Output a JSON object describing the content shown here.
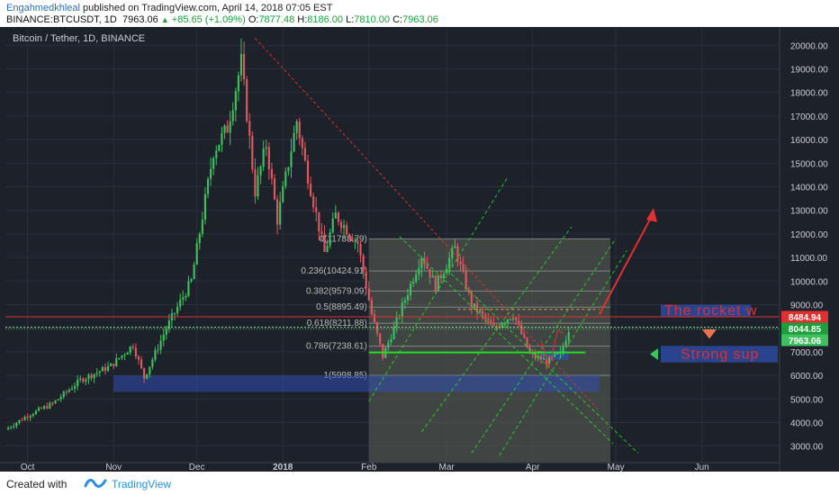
{
  "header": {
    "author": "Engahmedkhleal",
    "published_text": " published on TradingView.com, April 14, 2018 07:05 EST",
    "symbol": "BINANCE:BTCUSDT, 1D",
    "last": "7963.06",
    "change": "+85.65 (+1.09%)",
    "o_label": "O:",
    "o_value": "7877.48",
    "h_label": "H:",
    "h_value": "8186.00",
    "l_label": "L:",
    "l_value": "7810.00",
    "c_label": "C:",
    "c_value": "7963.06"
  },
  "footer": {
    "created_with": "Created with",
    "brand": "TradingView"
  },
  "colors": {
    "background": "#1d212a",
    "up": "#3fbf5e",
    "down": "#e0585f",
    "grid": "#2a2f3a",
    "red_line": "#e03030",
    "green_line": "#22dd22",
    "fib_box": "#5c6559",
    "blue_box": "#2d4fb0"
  },
  "chart_data": {
    "type": "candlestick",
    "title": "Bitcoin / Tether, 1D, BINANCE",
    "x_tick_labels": [
      "Oct",
      "Nov",
      "Dec",
      "2018",
      "Feb",
      "Mar",
      "Apr",
      "May",
      "Jun"
    ],
    "x_tick_dates": [
      "2017-10-01",
      "2017-11-01",
      "2017-12-01",
      "2018-01-01",
      "2018-02-01",
      "2018-03-01",
      "2018-04-01",
      "2018-05-01",
      "2018-06-01"
    ],
    "y_tick_labels": [
      "20000.00",
      "19000.00",
      "18000.00",
      "17000.00",
      "16000.00",
      "15000.00",
      "14000.00",
      "13000.00",
      "12000.00",
      "11000.00",
      "10000.00",
      "9000.00",
      "8000.00",
      "7000.00",
      "6000.00",
      "5000.00",
      "4000.00",
      "3000.00"
    ],
    "x_range": [
      "2017-09-23",
      "2018-06-29"
    ],
    "y_range": [
      2300,
      20700
    ],
    "price_labels": [
      {
        "text": "8484.94",
        "value": 8484.94,
        "color": "#e03030"
      },
      {
        "text": "8044.85",
        "value": 8044.85,
        "color": "#1e9e3a"
      },
      {
        "text": "7963.06",
        "value": 7963.06,
        "color": "#3fbf5e"
      }
    ],
    "fib_levels": [
      {
        "label": "0(11788.79)",
        "value": 11788.79
      },
      {
        "label": "0.236(10424.91)",
        "value": 10424.91
      },
      {
        "label": "0.382(9579.09)",
        "value": 9579.09
      },
      {
        "label": "0.5(8895.49)",
        "value": 8895.49
      },
      {
        "label": "0.618(8211.88)",
        "value": 8211.88
      },
      {
        "label": "0.786(7238.61)",
        "value": 7238.61
      },
      {
        "label": "1(5998.85)",
        "value": 5998.85
      }
    ],
    "annotations": [
      {
        "text": "The rocket w",
        "color": "#e03030"
      },
      {
        "text": "Strong sup",
        "color": "#e03030"
      }
    ],
    "anchor_points": [
      [
        "2017-09-23",
        3700
      ],
      [
        "2017-10-01",
        4300
      ],
      [
        "2017-10-10",
        4800
      ],
      [
        "2017-10-20",
        5800
      ],
      [
        "2017-10-31",
        6400
      ],
      [
        "2017-11-08",
        7300
      ],
      [
        "2017-11-12",
        5900
      ],
      [
        "2017-11-20",
        8000
      ],
      [
        "2017-11-29",
        10000
      ],
      [
        "2017-12-07",
        15500
      ],
      [
        "2017-12-12",
        16500
      ],
      [
        "2017-12-17",
        19300
      ],
      [
        "2017-12-22",
        13800
      ],
      [
        "2017-12-26",
        15800
      ],
      [
        "2017-12-30",
        12600
      ],
      [
        "2018-01-06",
        16800
      ],
      [
        "2018-01-09",
        15000
      ],
      [
        "2018-01-16",
        11200
      ],
      [
        "2018-01-20",
        12800
      ],
      [
        "2018-01-28",
        11600
      ],
      [
        "2018-02-02",
        8600
      ],
      [
        "2018-02-06",
        6800
      ],
      [
        "2018-02-12",
        8600
      ],
      [
        "2018-02-20",
        11100
      ],
      [
        "2018-02-25",
        9800
      ],
      [
        "2018-03-04",
        11400
      ],
      [
        "2018-03-10",
        9000
      ],
      [
        "2018-03-18",
        8000
      ],
      [
        "2018-03-25",
        8600
      ],
      [
        "2018-03-31",
        6900
      ],
      [
        "2018-04-06",
        6600
      ],
      [
        "2018-04-11",
        6900
      ],
      [
        "2018-04-14",
        7963
      ]
    ]
  }
}
